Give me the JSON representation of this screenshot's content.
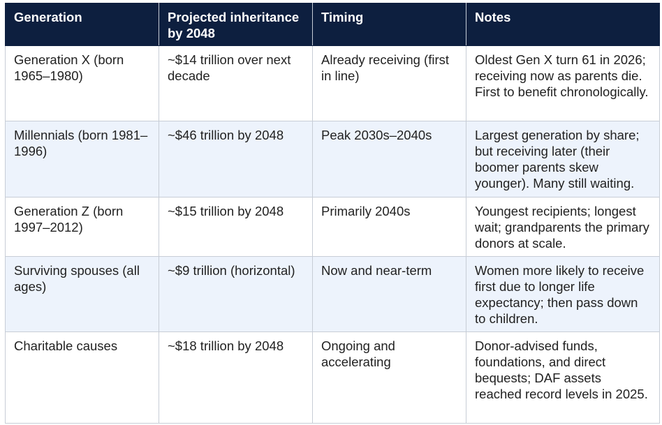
{
  "table": {
    "headers": [
      "Generation",
      "Projected inheritance by 2048",
      "Timing",
      "Notes"
    ],
    "rows": [
      [
        "Generation X (born 1965–1980)",
        "~$14 trillion over next decade",
        "Already receiving (first in line)",
        "Oldest Gen X turn 61 in 2026; receiving now as parents die. First to benefit chronologically."
      ],
      [
        "Millennials (born 1981–1996)",
        "~$46 trillion by 2048",
        "Peak 2030s–2040s",
        "Largest generation by share; but receiving later (their boomer parents skew younger). Many still waiting."
      ],
      [
        "Generation Z (born 1997–2012)",
        "~$15 trillion by 2048",
        "Primarily 2040s",
        "Youngest recipients; longest wait; grandparents the primary donors at scale."
      ],
      [
        "Surviving spouses (all ages)",
        "~$9 trillion (horizontal)",
        "Now and near-term",
        "Women more likely to receive first due to longer life expectancy; then pass down to children."
      ],
      [
        "Charitable causes",
        "~$18 trillion by 2048",
        "Ongoing and accelerating",
        "Donor-advised funds, foundations, and direct bequests; DAF assets reached record levels in 2025."
      ]
    ]
  },
  "colors": {
    "header_bg": "#0d1f3f",
    "header_text": "#ffffff",
    "alt_row_bg": "#edf3fc",
    "border": "#c7cdd6"
  }
}
